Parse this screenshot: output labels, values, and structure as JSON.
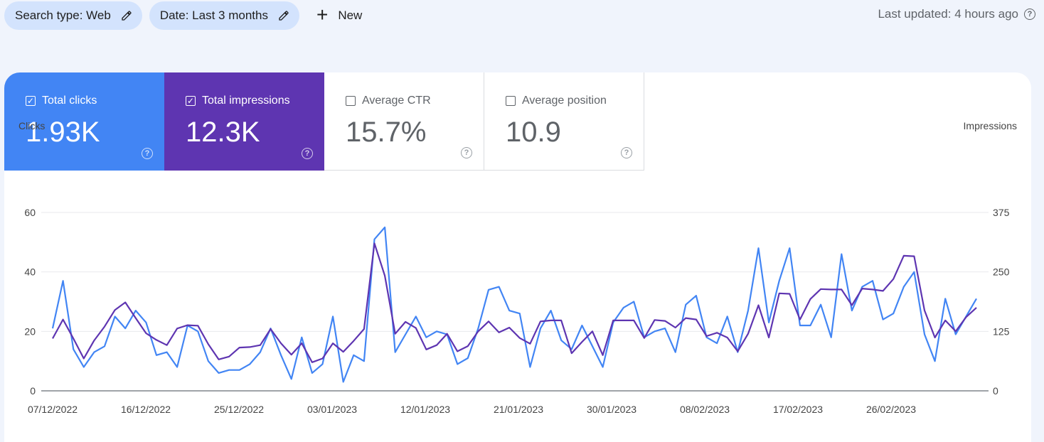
{
  "filters": {
    "search_type": "Search type: Web",
    "date": "Date: Last 3 months",
    "new_label": "New"
  },
  "last_updated": "Last updated: 4 hours ago",
  "metrics": [
    {
      "label": "Total clicks",
      "value": "1.93K",
      "checked": true,
      "color": "#4285f4"
    },
    {
      "label": "Total impressions",
      "value": "12.3K",
      "checked": true,
      "color": "#5e35b1"
    },
    {
      "label": "Average CTR",
      "value": "15.7%",
      "checked": false
    },
    {
      "label": "Average position",
      "value": "10.9",
      "checked": false
    }
  ],
  "chart_data": {
    "type": "line",
    "ylabel_left": "Clicks",
    "ylabel_right": "Impressions",
    "y_ticks_left": [
      0,
      20,
      40,
      60
    ],
    "y_ticks_right": [
      0,
      125,
      250,
      375
    ],
    "ylim_left": [
      0,
      60
    ],
    "ylim_right": [
      0,
      375
    ],
    "x_start": "07/12/2022",
    "x_tick_labels": [
      "07/12/2022",
      "16/12/2022",
      "25/12/2022",
      "03/01/2023",
      "12/01/2023",
      "21/01/2023",
      "30/01/2023",
      "08/02/2023",
      "17/02/2023",
      "26/02/2023"
    ],
    "series": [
      {
        "name": "Clicks",
        "axis": "left",
        "color": "#4285f4",
        "values": [
          21,
          37,
          14,
          8,
          13,
          15,
          25,
          21,
          27,
          23,
          12,
          13,
          8,
          22,
          20,
          10,
          6,
          7,
          7,
          9,
          13,
          21,
          12,
          4,
          18,
          6,
          9,
          25,
          3,
          12,
          10,
          51,
          55,
          13,
          19,
          25,
          18,
          20,
          19,
          9,
          11,
          21,
          34,
          35,
          27,
          26,
          8,
          21,
          27,
          17,
          14,
          22,
          15,
          8,
          23,
          28,
          30,
          18,
          20,
          21,
          13,
          29,
          32,
          18,
          16,
          25,
          13,
          27,
          48,
          23,
          37,
          48,
          22,
          22,
          29,
          18,
          46,
          27,
          35,
          37,
          24,
          26,
          35,
          40,
          19,
          10,
          31,
          19,
          25,
          31
        ]
      },
      {
        "name": "Impressions",
        "axis": "right",
        "color": "#5e35b1",
        "values": [
          110,
          150,
          110,
          68,
          106,
          135,
          170,
          186,
          153,
          121,
          107,
          96,
          131,
          138,
          137,
          98,
          66,
          72,
          91,
          92,
          96,
          130,
          100,
          76,
          100,
          60,
          68,
          100,
          82,
          105,
          130,
          310,
          242,
          120,
          145,
          132,
          87,
          96,
          120,
          83,
          94,
          125,
          146,
          123,
          133,
          111,
          99,
          146,
          148,
          148,
          79,
          103,
          125,
          75,
          148,
          148,
          148,
          111,
          149,
          147,
          133,
          153,
          150,
          115,
          122,
          112,
          83,
          120,
          180,
          112,
          205,
          204,
          150,
          193,
          214,
          213,
          213,
          180,
          215,
          213,
          210,
          235,
          284,
          283,
          169,
          112,
          148,
          125,
          155,
          175
        ]
      }
    ]
  }
}
